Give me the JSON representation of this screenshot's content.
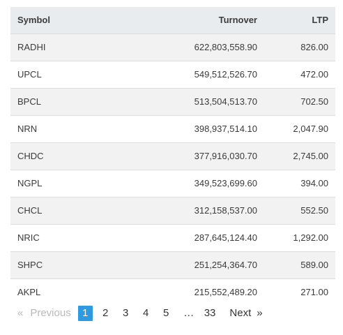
{
  "table": {
    "headers": {
      "symbol": "Symbol",
      "turnover": "Turnover",
      "ltp": "LTP"
    },
    "rows": [
      {
        "symbol": "RADHI",
        "turnover": "622,803,558.90",
        "ltp": "826.00"
      },
      {
        "symbol": "UPCL",
        "turnover": "549,512,526.70",
        "ltp": "472.00"
      },
      {
        "symbol": "BPCL",
        "turnover": "513,504,513.70",
        "ltp": "702.50"
      },
      {
        "symbol": "NRN",
        "turnover": "398,937,514.10",
        "ltp": "2,047.90"
      },
      {
        "symbol": "CHDC",
        "turnover": "377,916,030.70",
        "ltp": "2,745.00"
      },
      {
        "symbol": "NGPL",
        "turnover": "349,523,699.60",
        "ltp": "394.00"
      },
      {
        "symbol": "CHCL",
        "turnover": "312,158,537.00",
        "ltp": "552.50"
      },
      {
        "symbol": "NRIC",
        "turnover": "287,645,124.40",
        "ltp": "1,292.00"
      },
      {
        "symbol": "SHPC",
        "turnover": "251,254,364.70",
        "ltp": "589.00"
      },
      {
        "symbol": "AKPL",
        "turnover": "215,552,489.20",
        "ltp": "271.00"
      }
    ]
  },
  "pagination": {
    "first_symbol": "«",
    "previous_label": "Previous",
    "pages": [
      "1",
      "2",
      "3",
      "4",
      "5"
    ],
    "active_page": "1",
    "ellipsis": "…",
    "last_page": "33",
    "next_label": "Next",
    "last_symbol": "»",
    "active_color": "#2f9ae0",
    "disabled_color": "#b9b9b9"
  }
}
